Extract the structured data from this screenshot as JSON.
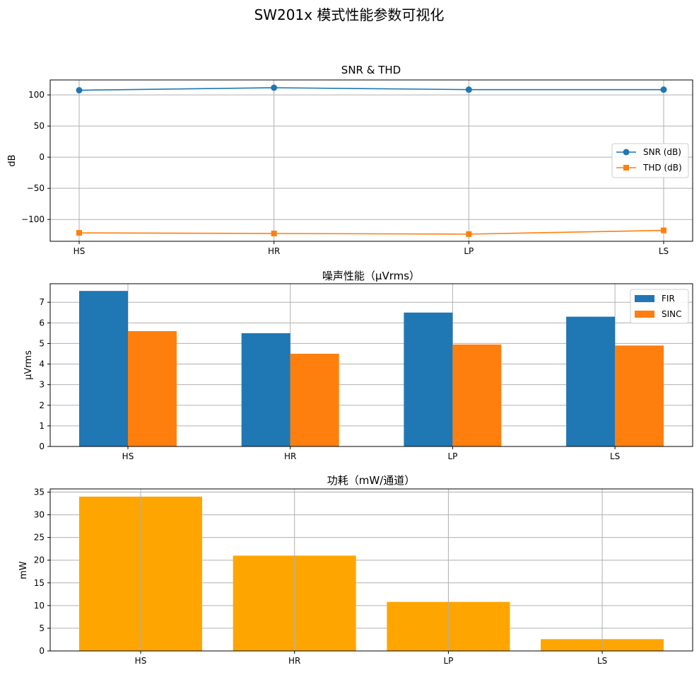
{
  "suptitle": "SW201x 模式性能参数可视化",
  "colors": {
    "snr": "#1f77b4",
    "thd": "#ff7f0e",
    "fir": "#1f77b4",
    "sinc": "#ff7f0e",
    "power": "#ffa500",
    "grid": "#b0b0b0"
  },
  "chart_data": [
    {
      "type": "line",
      "title": "SNR & THD",
      "xlabel": "",
      "ylabel": "dB",
      "categories": [
        "HS",
        "HR",
        "LP",
        "LS"
      ],
      "ylim": [
        -135,
        124
      ],
      "yticks": [
        -100,
        -50,
        0,
        50,
        100
      ],
      "ytick_labels": [
        "−100",
        "−50",
        "0",
        "50",
        "100"
      ],
      "grid": true,
      "legend_position": "center-right",
      "series": [
        {
          "name": "SNR (dB)",
          "marker": "circle",
          "values": [
            107.5,
            111.5,
            108.5,
            108.5
          ]
        },
        {
          "name": "THD (dB)",
          "marker": "square",
          "values": [
            -121.5,
            -122.5,
            -123.5,
            -117.5
          ]
        }
      ]
    },
    {
      "type": "bar",
      "title": "噪声性能（μVrms）",
      "xlabel": "",
      "ylabel": "μVrms",
      "categories": [
        "HS",
        "HR",
        "LP",
        "LS"
      ],
      "ylim": [
        0,
        7.9
      ],
      "yticks": [
        0,
        1,
        2,
        3,
        4,
        5,
        6,
        7
      ],
      "ytick_labels": [
        "0",
        "1",
        "2",
        "3",
        "4",
        "5",
        "6",
        "7"
      ],
      "grid": true,
      "legend_position": "top-right",
      "series": [
        {
          "name": "FIR",
          "values": [
            7.55,
            5.5,
            6.5,
            6.3
          ]
        },
        {
          "name": "SINC",
          "values": [
            5.6,
            4.5,
            4.95,
            4.9
          ]
        }
      ]
    },
    {
      "type": "bar",
      "title": "功耗（mW/通道）",
      "xlabel": "",
      "ylabel": "mW",
      "categories": [
        "HS",
        "HR",
        "LP",
        "LS"
      ],
      "ylim": [
        0,
        35.7
      ],
      "yticks": [
        0,
        5,
        10,
        15,
        20,
        25,
        30,
        35
      ],
      "ytick_labels": [
        "0",
        "5",
        "10",
        "15",
        "20",
        "25",
        "30",
        "35"
      ],
      "grid": true,
      "series": [
        {
          "values": [
            34,
            21,
            10.8,
            2.6
          ]
        }
      ]
    }
  ]
}
